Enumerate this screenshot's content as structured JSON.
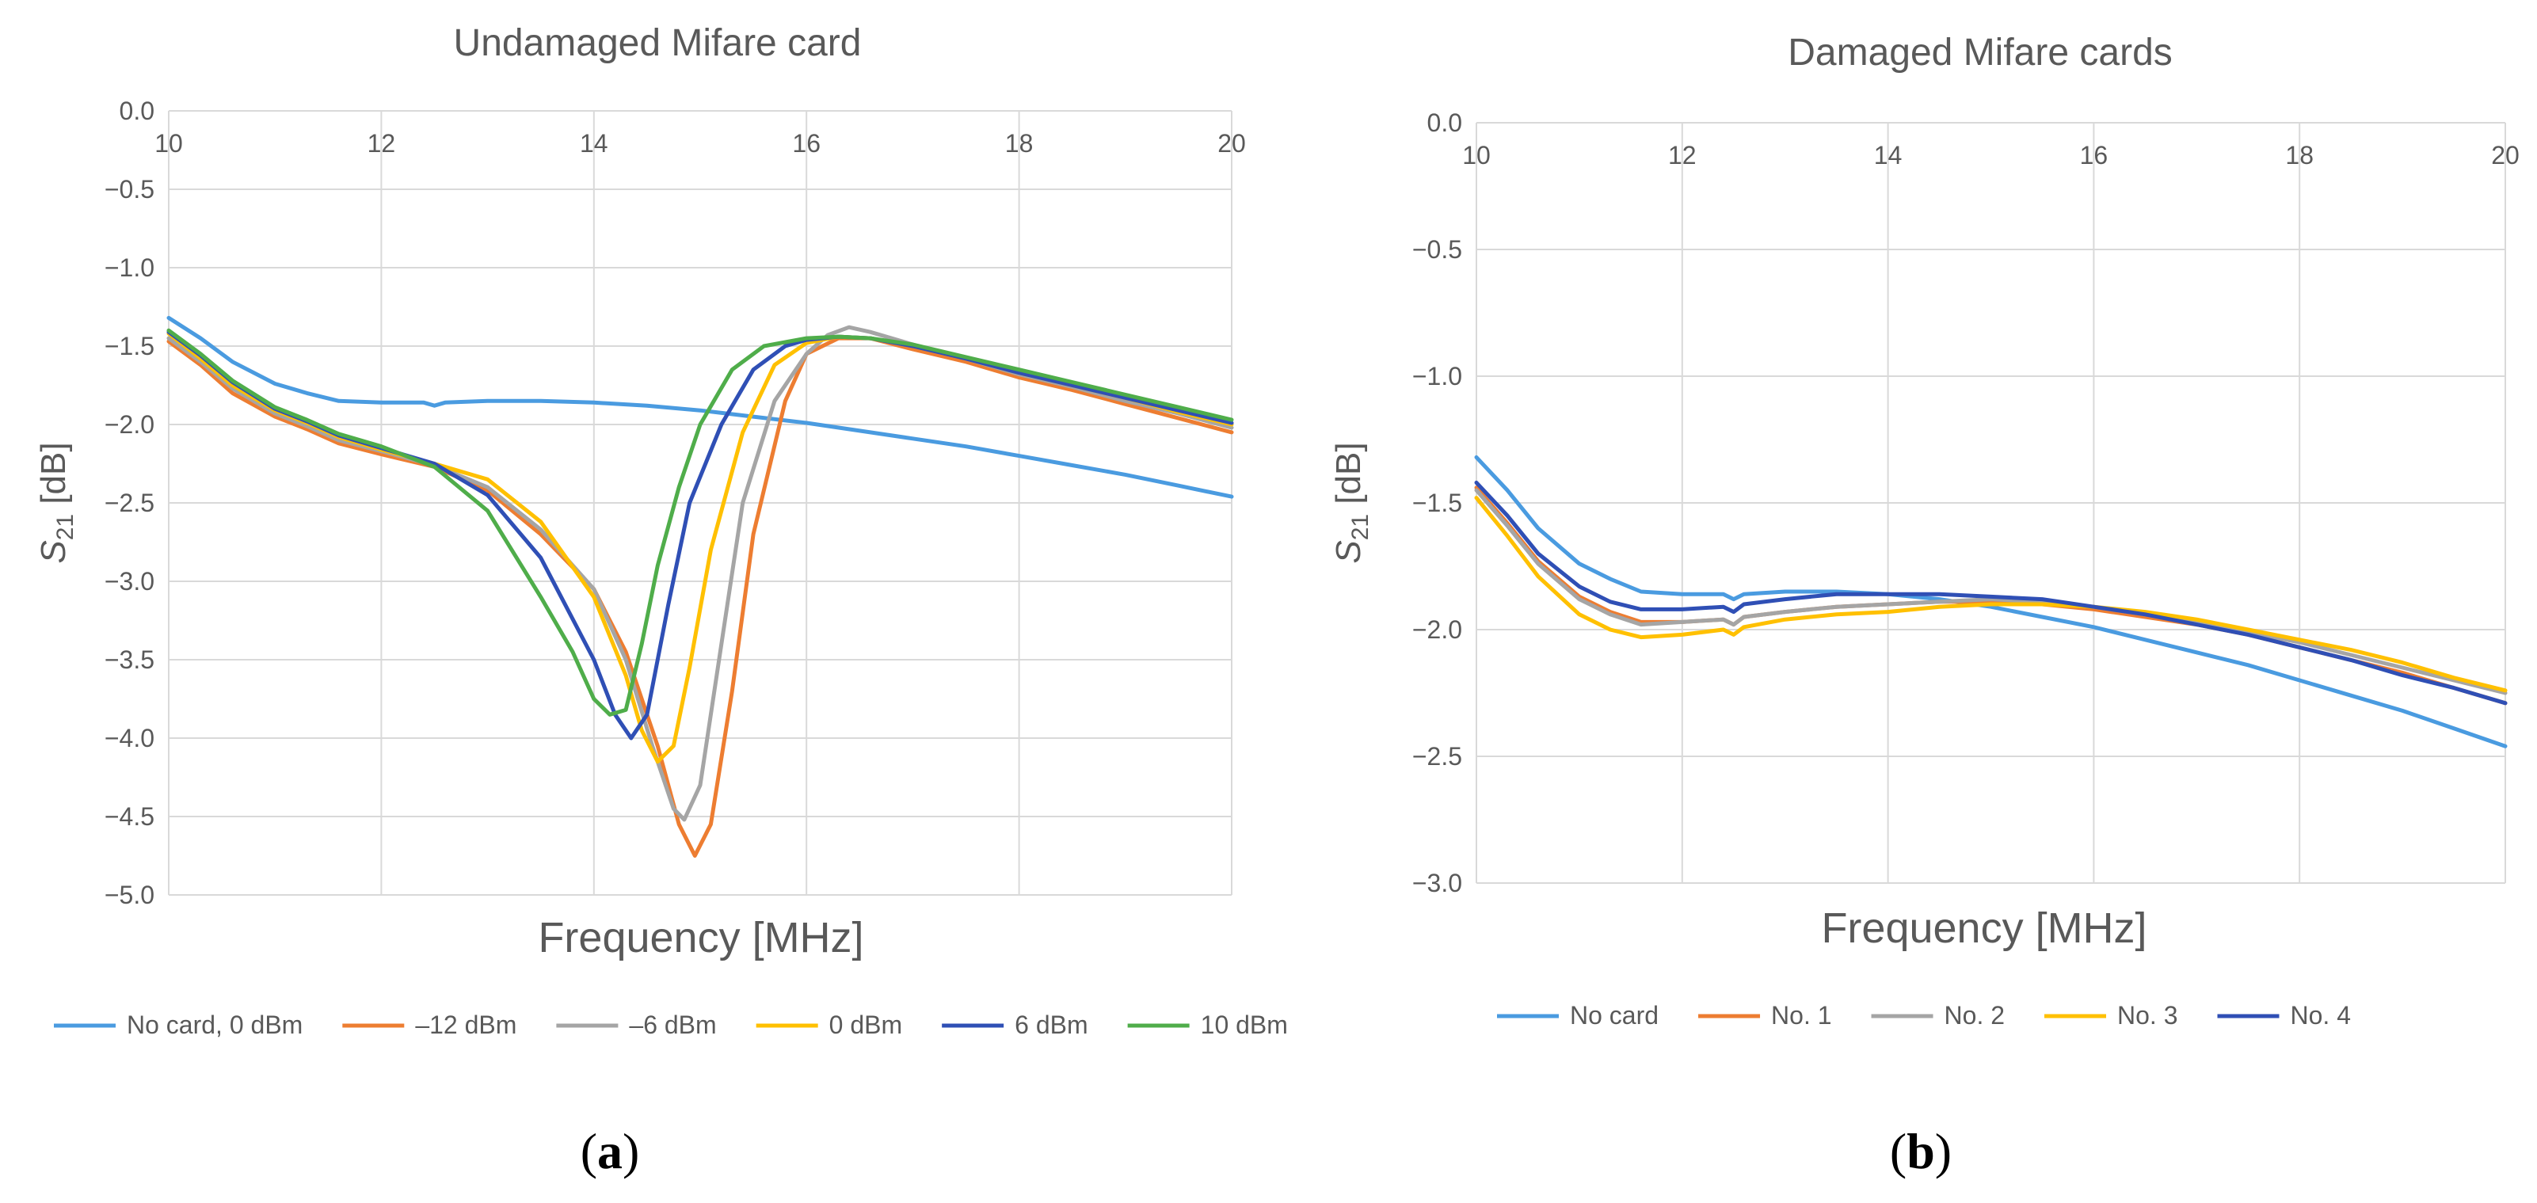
{
  "chart_data": [
    {
      "type": "line",
      "title": "Undamaged Mifare card",
      "xlabel": "Frequency [MHz]",
      "ylabel": "S21 [dB]",
      "ylabel_main": "S",
      "ylabel_sub": "21",
      "ylabel_unit": " [dB]",
      "xlim": [
        10,
        20
      ],
      "ylim": [
        -5.0,
        0.0
      ],
      "xticks": [
        "10",
        "12",
        "14",
        "16",
        "18",
        "20"
      ],
      "yticks": [
        "0.0",
        "-0.5",
        "-1.0",
        "-1.5",
        "-2.0",
        "-2.5",
        "-3.0",
        "-3.5",
        "-4.0",
        "-4.5",
        "-5.0"
      ],
      "panel_label": "a",
      "series": [
        {
          "name": "No card, 0 dBm",
          "color": "#4A9BE0",
          "x": [
            10,
            10.3,
            10.6,
            11.0,
            11.3,
            11.6,
            12.0,
            12.4,
            12.5,
            12.6,
            13.0,
            13.5,
            14.0,
            14.5,
            15.0,
            15.5,
            16.0,
            16.5,
            17.0,
            17.5,
            18.0,
            18.5,
            19.0,
            19.5,
            20.0
          ],
          "y": [
            -1.32,
            -1.45,
            -1.6,
            -1.74,
            -1.8,
            -1.85,
            -1.86,
            -1.86,
            -1.88,
            -1.86,
            -1.85,
            -1.85,
            -1.86,
            -1.88,
            -1.91,
            -1.95,
            -1.99,
            -2.04,
            -2.09,
            -2.14,
            -2.2,
            -2.26,
            -2.32,
            -2.39,
            -2.46
          ]
        },
        {
          "name": "–12 dBm",
          "color": "#ED7D31",
          "x": [
            10,
            10.3,
            10.6,
            11.0,
            11.3,
            11.6,
            12.0,
            12.5,
            13.0,
            13.5,
            14.0,
            14.3,
            14.6,
            14.8,
            14.95,
            15.1,
            15.3,
            15.5,
            15.8,
            16.0,
            16.3,
            16.6,
            17.0,
            17.5,
            18.0,
            18.5,
            19.0,
            19.5,
            20.0
          ],
          "y": [
            -1.47,
            -1.62,
            -1.8,
            -1.95,
            -2.03,
            -2.12,
            -2.19,
            -2.27,
            -2.42,
            -2.7,
            -3.05,
            -3.45,
            -4.05,
            -4.55,
            -4.75,
            -4.55,
            -3.7,
            -2.7,
            -1.85,
            -1.55,
            -1.45,
            -1.45,
            -1.52,
            -1.6,
            -1.7,
            -1.78,
            -1.87,
            -1.96,
            -2.05
          ]
        },
        {
          "name": "–6 dBm",
          "color": "#A5A5A5",
          "x": [
            10,
            10.3,
            10.6,
            11.0,
            11.3,
            11.6,
            12.0,
            12.5,
            13.0,
            13.5,
            14.0,
            14.3,
            14.55,
            14.75,
            14.85,
            15.0,
            15.2,
            15.4,
            15.7,
            16.0,
            16.2,
            16.4,
            16.6,
            17.0,
            17.5,
            18.0,
            18.5,
            19.0,
            19.5,
            20.0
          ],
          "y": [
            -1.45,
            -1.6,
            -1.77,
            -1.93,
            -2.01,
            -2.1,
            -2.17,
            -2.26,
            -2.4,
            -2.67,
            -3.05,
            -3.5,
            -4.05,
            -4.45,
            -4.52,
            -4.3,
            -3.4,
            -2.5,
            -1.85,
            -1.55,
            -1.43,
            -1.38,
            -1.41,
            -1.49,
            -1.58,
            -1.68,
            -1.76,
            -1.85,
            -1.93,
            -2.02
          ]
        },
        {
          "name": "0 dBm",
          "color": "#FFC000",
          "x": [
            10,
            10.3,
            10.6,
            11.0,
            11.3,
            11.6,
            12.0,
            12.5,
            13.0,
            13.5,
            14.0,
            14.3,
            14.45,
            14.6,
            14.75,
            14.9,
            15.1,
            15.4,
            15.7,
            16.0,
            16.3,
            16.6,
            17.0,
            17.5,
            18.0,
            18.5,
            19.0,
            19.5,
            20.0
          ],
          "y": [
            -1.42,
            -1.58,
            -1.75,
            -1.91,
            -1.99,
            -2.08,
            -2.16,
            -2.25,
            -2.35,
            -2.62,
            -3.1,
            -3.6,
            -3.95,
            -4.15,
            -4.05,
            -3.55,
            -2.8,
            -2.05,
            -1.62,
            -1.48,
            -1.44,
            -1.45,
            -1.5,
            -1.58,
            -1.67,
            -1.75,
            -1.83,
            -1.92,
            -2.0
          ]
        },
        {
          "name": "6 dBm",
          "color": "#2F4FB5",
          "x": [
            10,
            10.3,
            10.6,
            11.0,
            11.3,
            11.6,
            12.0,
            12.5,
            13.0,
            13.5,
            14.0,
            14.2,
            14.35,
            14.5,
            14.7,
            14.9,
            15.2,
            15.5,
            15.8,
            16.0,
            16.3,
            16.6,
            17.0,
            17.5,
            18.0,
            18.5,
            19.0,
            19.5,
            20.0
          ],
          "y": [
            -1.41,
            -1.56,
            -1.73,
            -1.9,
            -1.98,
            -2.07,
            -2.15,
            -2.25,
            -2.45,
            -2.85,
            -3.5,
            -3.85,
            -4.0,
            -3.85,
            -3.15,
            -2.5,
            -2.0,
            -1.65,
            -1.5,
            -1.46,
            -1.44,
            -1.45,
            -1.5,
            -1.58,
            -1.67,
            -1.75,
            -1.83,
            -1.91,
            -1.99
          ]
        },
        {
          "name": "10 dBm",
          "color": "#4FAD4A",
          "x": [
            10,
            10.3,
            10.6,
            11.0,
            11.3,
            11.6,
            12.0,
            12.5,
            13.0,
            13.5,
            13.8,
            14.0,
            14.15,
            14.3,
            14.45,
            14.6,
            14.8,
            15.0,
            15.3,
            15.6,
            16.0,
            16.3,
            16.6,
            17.0,
            17.5,
            18.0,
            18.5,
            19.0,
            19.5,
            20.0
          ],
          "y": [
            -1.4,
            -1.55,
            -1.72,
            -1.89,
            -1.97,
            -2.06,
            -2.14,
            -2.27,
            -2.55,
            -3.1,
            -3.45,
            -3.75,
            -3.85,
            -3.82,
            -3.4,
            -2.9,
            -2.4,
            -2.0,
            -1.65,
            -1.5,
            -1.45,
            -1.44,
            -1.45,
            -1.49,
            -1.57,
            -1.65,
            -1.73,
            -1.81,
            -1.89,
            -1.97
          ]
        }
      ]
    },
    {
      "type": "line",
      "title": "Damaged Mifare cards",
      "xlabel": "Frequency [MHz]",
      "ylabel": "S21 [dB]",
      "ylabel_main": "S",
      "ylabel_sub": "21",
      "ylabel_unit": " [dB]",
      "xlim": [
        10,
        20
      ],
      "ylim": [
        -3.0,
        0.0
      ],
      "xticks": [
        "10",
        "12",
        "14",
        "16",
        "18",
        "20"
      ],
      "yticks": [
        "0.0",
        "-0.5",
        "-1.0",
        "-1.5",
        "-2.0",
        "-2.5",
        "-3.0"
      ],
      "panel_label": "b",
      "series": [
        {
          "name": "No card",
          "color": "#4A9BE0",
          "x": [
            10,
            10.3,
            10.6,
            11.0,
            11.3,
            11.6,
            12.0,
            12.4,
            12.5,
            12.6,
            13.0,
            13.5,
            14.0,
            14.5,
            15.0,
            15.5,
            16.0,
            16.5,
            17.0,
            17.5,
            18.0,
            18.5,
            19.0,
            19.5,
            20.0
          ],
          "y": [
            -1.32,
            -1.45,
            -1.6,
            -1.74,
            -1.8,
            -1.85,
            -1.86,
            -1.86,
            -1.88,
            -1.86,
            -1.85,
            -1.85,
            -1.86,
            -1.88,
            -1.91,
            -1.95,
            -1.99,
            -2.04,
            -2.09,
            -2.14,
            -2.2,
            -2.26,
            -2.32,
            -2.39,
            -2.46
          ]
        },
        {
          "name": "No. 1",
          "color": "#ED7D31",
          "x": [
            10,
            10.3,
            10.6,
            11.0,
            11.3,
            11.6,
            12.0,
            12.4,
            12.5,
            12.6,
            13.0,
            13.5,
            14.0,
            14.5,
            15.0,
            15.5,
            16.0,
            16.5,
            17.0,
            17.5,
            18.0,
            18.5,
            19.0,
            19.5,
            20.0
          ],
          "y": [
            -1.44,
            -1.58,
            -1.73,
            -1.87,
            -1.93,
            -1.97,
            -1.97,
            -1.96,
            -1.98,
            -1.95,
            -1.93,
            -1.91,
            -1.9,
            -1.89,
            -1.89,
            -1.9,
            -1.92,
            -1.95,
            -1.98,
            -2.02,
            -2.07,
            -2.12,
            -2.17,
            -2.23,
            -2.29
          ]
        },
        {
          "name": "No. 2",
          "color": "#A5A5A5",
          "x": [
            10,
            10.3,
            10.6,
            11.0,
            11.3,
            11.6,
            12.0,
            12.4,
            12.5,
            12.6,
            13.0,
            13.5,
            14.0,
            14.5,
            15.0,
            15.5,
            16.0,
            16.5,
            17.0,
            17.5,
            18.0,
            18.5,
            19.0,
            19.5,
            20.0
          ],
          "y": [
            -1.45,
            -1.59,
            -1.74,
            -1.88,
            -1.94,
            -1.98,
            -1.97,
            -1.96,
            -1.98,
            -1.95,
            -1.93,
            -1.91,
            -1.9,
            -1.89,
            -1.88,
            -1.89,
            -1.91,
            -1.94,
            -1.97,
            -2.01,
            -2.05,
            -2.1,
            -2.15,
            -2.2,
            -2.25
          ]
        },
        {
          "name": "No. 3",
          "color": "#FFC000",
          "x": [
            10,
            10.3,
            10.6,
            11.0,
            11.3,
            11.6,
            12.0,
            12.4,
            12.5,
            12.6,
            13.0,
            13.5,
            14.0,
            14.5,
            15.0,
            15.5,
            16.0,
            16.5,
            17.0,
            17.5,
            18.0,
            18.5,
            19.0,
            19.5,
            20.0
          ],
          "y": [
            -1.48,
            -1.63,
            -1.79,
            -1.94,
            -2.0,
            -2.03,
            -2.02,
            -2.0,
            -2.02,
            -1.99,
            -1.96,
            -1.94,
            -1.93,
            -1.91,
            -1.9,
            -1.9,
            -1.91,
            -1.93,
            -1.96,
            -2.0,
            -2.04,
            -2.08,
            -2.13,
            -2.19,
            -2.24
          ]
        },
        {
          "name": "No. 4",
          "color": "#2F4FB5",
          "x": [
            10,
            10.3,
            10.6,
            11.0,
            11.3,
            11.6,
            12.0,
            12.4,
            12.5,
            12.6,
            13.0,
            13.5,
            14.0,
            14.5,
            15.0,
            15.5,
            16.0,
            16.5,
            17.0,
            17.5,
            18.0,
            18.5,
            19.0,
            19.5,
            20.0
          ],
          "y": [
            -1.42,
            -1.55,
            -1.7,
            -1.83,
            -1.89,
            -1.92,
            -1.92,
            -1.91,
            -1.93,
            -1.9,
            -1.88,
            -1.86,
            -1.86,
            -1.86,
            -1.87,
            -1.88,
            -1.91,
            -1.94,
            -1.98,
            -2.02,
            -2.07,
            -2.12,
            -2.18,
            -2.23,
            -2.29
          ]
        }
      ]
    }
  ]
}
